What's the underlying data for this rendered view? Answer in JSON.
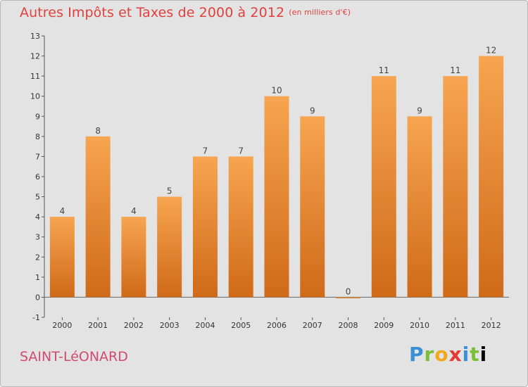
{
  "header": {
    "title": "Autres Impôts et Taxes de 2000 à 2012",
    "unit": "(en milliers d'€)"
  },
  "footer": {
    "commune": "SAINT-LéONARD",
    "logo": [
      "P",
      "r",
      "o",
      "x",
      "i",
      "t",
      "i"
    ]
  },
  "colors": {
    "title": "#e0413e",
    "commune": "#d04a73",
    "bar_top": "#f7a550",
    "bar_bottom": "#cf6a18",
    "background": "#e3e3e3"
  },
  "chart_data": {
    "type": "bar",
    "title": "Autres Impôts et Taxes de 2000 à 2012",
    "subtitle": "(en milliers d'€)",
    "categories": [
      "2000",
      "2001",
      "2002",
      "2003",
      "2004",
      "2005",
      "2006",
      "2007",
      "2008",
      "2009",
      "2010",
      "2011",
      "2012"
    ],
    "values": [
      4,
      8,
      4,
      5,
      7,
      7,
      10,
      9,
      0,
      11,
      9,
      11,
      12
    ],
    "ylim": [
      -1,
      13
    ],
    "yticks": [
      -1,
      0,
      1,
      2,
      3,
      4,
      5,
      6,
      7,
      8,
      9,
      10,
      11,
      12,
      13
    ],
    "grid": false,
    "data_labels": true
  }
}
